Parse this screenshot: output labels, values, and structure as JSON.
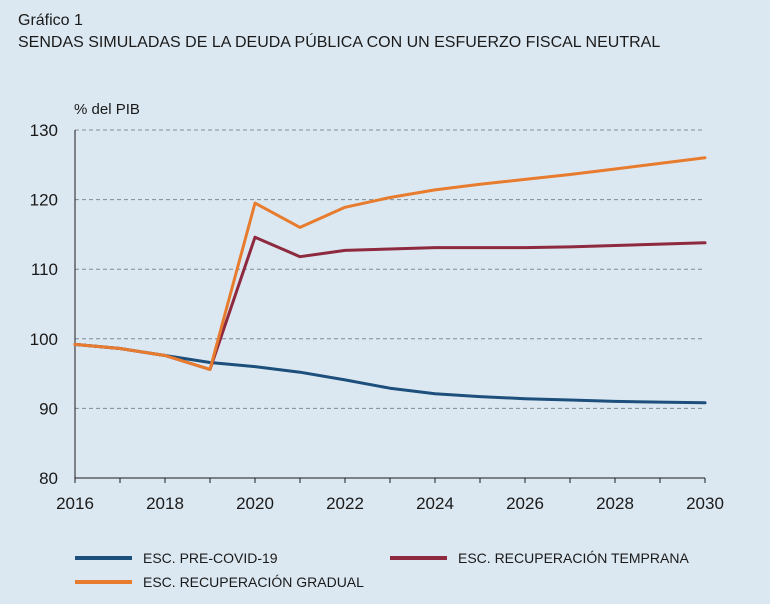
{
  "header": {
    "figure_label": "Gráfico 1",
    "title": "SENDAS SIMULADAS DE LA DEUDA PÚBLICA CON UN ESFUERZO FISCAL NEUTRAL"
  },
  "chart_data": {
    "type": "line",
    "title": "SENDAS SIMULADAS DE LA DEUDA PÚBLICA CON UN ESFUERZO FISCAL NEUTRAL",
    "ylabel": "% del PIB",
    "xlabel": "",
    "x": [
      2016,
      2017,
      2018,
      2019,
      2020,
      2021,
      2022,
      2023,
      2024,
      2025,
      2026,
      2027,
      2028,
      2029,
      2030
    ],
    "xlim": [
      2016,
      2030
    ],
    "ylim": [
      80,
      130
    ],
    "xticks": [
      "2016",
      "2018",
      "2020",
      "2022",
      "2024",
      "2026",
      "2028",
      "2030"
    ],
    "yticks": [
      "80",
      "90",
      "100",
      "110",
      "120",
      "130"
    ],
    "grid": "horizontal dashed",
    "legend_position": "bottom",
    "series": [
      {
        "name": "ESC. PRE-COVID-19",
        "color": "#1c4f7c",
        "values": [
          99.2,
          98.6,
          97.6,
          96.6,
          96.0,
          95.2,
          94.1,
          92.9,
          92.1,
          91.7,
          91.4,
          91.2,
          91.0,
          90.9,
          90.8
        ]
      },
      {
        "name": "ESC. RECUPERACIÓN TEMPRANA",
        "color": "#8e2a3f",
        "values": [
          99.2,
          98.6,
          97.6,
          95.6,
          114.6,
          111.8,
          112.7,
          112.9,
          113.1,
          113.1,
          113.1,
          113.2,
          113.4,
          113.6,
          113.8
        ]
      },
      {
        "name": "ESC. RECUPERACIÓN GRADUAL",
        "color": "#e87c2e",
        "values": [
          99.2,
          98.6,
          97.6,
          95.6,
          119.5,
          116.0,
          118.9,
          120.3,
          121.4,
          122.2,
          122.9,
          123.6,
          124.4,
          125.2,
          126.0
        ]
      }
    ]
  }
}
